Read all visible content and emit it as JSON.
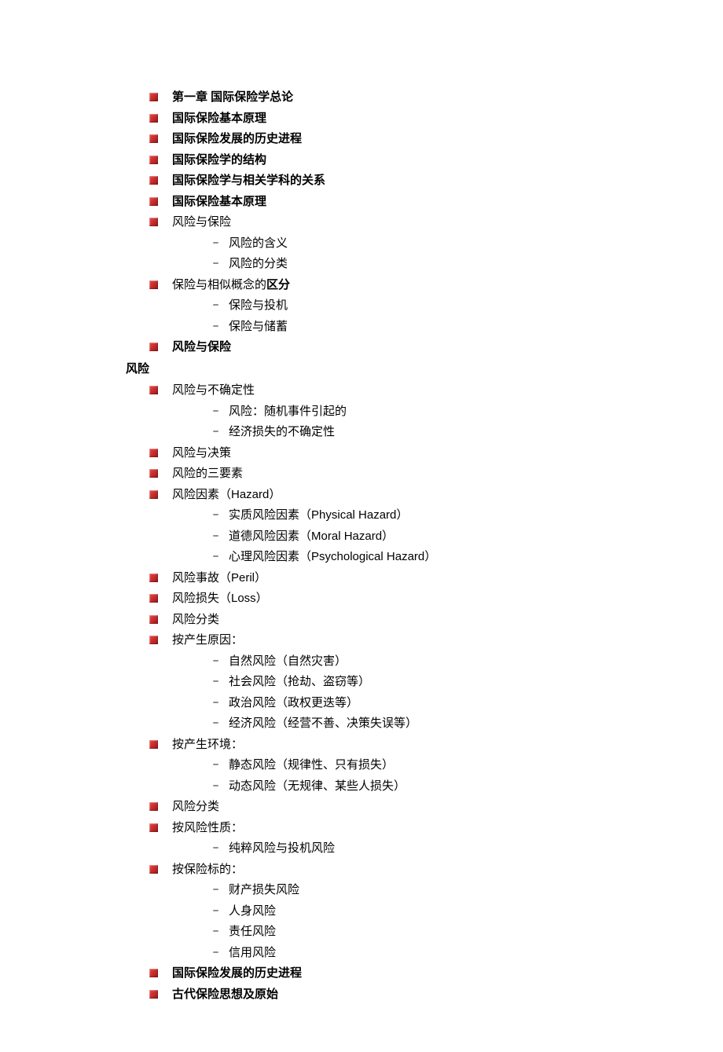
{
  "items": [
    {
      "level": 1,
      "bold": true,
      "text": "第一章   国际保险学总论"
    },
    {
      "level": 1,
      "bold": true,
      "text": "国际保险基本原理"
    },
    {
      "level": 1,
      "bold": true,
      "text": "国际保险发展的历史进程"
    },
    {
      "level": 1,
      "bold": true,
      "text": "国际保险学的结构"
    },
    {
      "level": 1,
      "bold": true,
      "text": "国际保险学与相关学科的关系"
    },
    {
      "level": 1,
      "bold": true,
      "text": "国际保险基本原理"
    },
    {
      "level": 1,
      "bold": false,
      "text": "风险与保险"
    },
    {
      "level": 2,
      "text": "风险的含义"
    },
    {
      "level": 2,
      "text": "风险的分类"
    },
    {
      "level": 1,
      "bold": false,
      "text": "保险与相似概念的",
      "boldSuffix": "区分"
    },
    {
      "level": 2,
      "text": "保险与投机"
    },
    {
      "level": 2,
      "text": "保险与储蓄"
    },
    {
      "level": 1,
      "bold": true,
      "text": "风险与保险"
    },
    {
      "level": 0,
      "text": "风险"
    },
    {
      "level": 1,
      "bold": false,
      "text": "风险与不确定性"
    },
    {
      "level": 2,
      "text": "风险：随机事件引起的"
    },
    {
      "level": 2,
      "text": "经济损失的不确定性"
    },
    {
      "level": 1,
      "bold": false,
      "text": "风险与决策"
    },
    {
      "level": 1,
      "bold": false,
      "text": "风险的三要素"
    },
    {
      "level": 1,
      "bold": false,
      "text": " 风险因素（Hazard）"
    },
    {
      "level": 2,
      "text": "实质风险因素（Physical Hazard）"
    },
    {
      "level": 2,
      "text": "道德风险因素（Moral Hazard）"
    },
    {
      "level": 2,
      "text": "心理风险因素（Psychological Hazard）"
    },
    {
      "level": 1,
      "bold": false,
      "text": " 风险事故（Peril）"
    },
    {
      "level": 1,
      "bold": false,
      "text": " 风险损失（Loss）"
    },
    {
      "level": 1,
      "bold": false,
      "text": "风险分类"
    },
    {
      "level": 1,
      "bold": false,
      "text": "按产生原因："
    },
    {
      "level": 2,
      "text": "自然风险（自然灾害）"
    },
    {
      "level": 2,
      "text": " 社会风险（抢劫、盗窃等）"
    },
    {
      "level": 2,
      "text": " 政治风险（政权更迭等）"
    },
    {
      "level": 2,
      "text": " 经济风险（经营不善、决策失误等）"
    },
    {
      "level": 1,
      "bold": false,
      "text": "按产生环境："
    },
    {
      "level": 2,
      "text": "静态风险（规律性、只有损失）"
    },
    {
      "level": 2,
      "text": "动态风险（无规律、某些人损失）"
    },
    {
      "level": 1,
      "bold": false,
      "text": "风险分类"
    },
    {
      "level": 1,
      "bold": false,
      "text": "按风险性质："
    },
    {
      "level": 2,
      "text": "纯粹风险与投机风险"
    },
    {
      "level": 1,
      "bold": false,
      "text": "按保险标的："
    },
    {
      "level": 2,
      "text": "财产损失风险"
    },
    {
      "level": 2,
      "text": "人身风险"
    },
    {
      "level": 2,
      "text": "责任风险"
    },
    {
      "level": 2,
      "text": "信用风险"
    },
    {
      "level": 1,
      "bold": true,
      "text": "国际保险发展的历史进程"
    },
    {
      "level": 1,
      "bold": true,
      "text": "古代保险思想及原始"
    }
  ]
}
